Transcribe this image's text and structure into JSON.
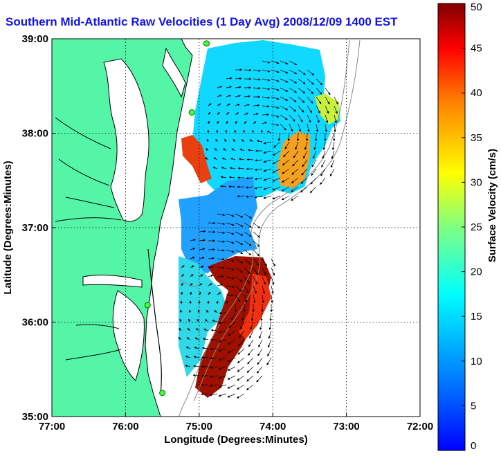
{
  "title": "Southern Mid-Atlantic Raw Velocities (1 Day Avg) 2008/12/09 1400 EST",
  "map": {
    "x_axis": {
      "label": "Longitude (Degrees:Minutes)",
      "ticks": [
        {
          "value": -77,
          "label": "77:00"
        },
        {
          "value": -76,
          "label": "76:00"
        },
        {
          "value": -75,
          "label": "75:00"
        },
        {
          "value": -74,
          "label": "74:00"
        },
        {
          "value": -73,
          "label": "73:00"
        },
        {
          "value": -72,
          "label": "72:00"
        }
      ],
      "range": [
        -77,
        -72
      ]
    },
    "y_axis": {
      "label": "Latitude (Degrees:Minutes)",
      "ticks": [
        {
          "value": 39,
          "label": "39:00"
        },
        {
          "value": 38,
          "label": "38:00"
        },
        {
          "value": 37,
          "label": "37:00"
        },
        {
          "value": 36,
          "label": "36:00"
        },
        {
          "value": 35,
          "label": "35:00"
        }
      ],
      "range": [
        35,
        39
      ]
    },
    "grid": "dotted",
    "land_color": "#55f5a8",
    "stations": [
      {
        "lon": -74.9,
        "lat": 38.95
      },
      {
        "lon": -75.1,
        "lat": 38.22
      },
      {
        "lon": -75.7,
        "lat": 36.18
      },
      {
        "lon": -75.5,
        "lat": 35.25
      }
    ]
  },
  "colorbar": {
    "label": "Surface Velocity (cm/s)",
    "min": 0,
    "max": 50,
    "ticks": [
      "0",
      "5",
      "10",
      "15",
      "20",
      "25",
      "30",
      "35",
      "40",
      "45",
      "50"
    ],
    "colormap": "jet"
  },
  "chart_data": {
    "type": "heatmap",
    "title": "Southern Mid-Atlantic Raw Velocities (1 Day Avg) 2008/12/09 1400 EST",
    "xlabel": "Longitude (Degrees:Minutes)",
    "ylabel": "Latitude (Degrees:Minutes)",
    "xlim": [
      -77,
      -72
    ],
    "ylim": [
      35,
      39
    ],
    "value_label": "Surface Velocity (cm/s)",
    "value_range": [
      0,
      50
    ],
    "regions": [
      {
        "lon": -74.6,
        "lat": 38.3,
        "speed": 10
      },
      {
        "lon": -73.6,
        "lat": 37.85,
        "speed": 30
      },
      {
        "lon": -73.4,
        "lat": 38.3,
        "speed": 22
      },
      {
        "lon": -74.95,
        "lat": 37.75,
        "speed": 42
      },
      {
        "lon": -74.8,
        "lat": 36.9,
        "speed": 8
      },
      {
        "lon": -74.3,
        "lat": 36.3,
        "speed": 45
      },
      {
        "lon": -74.3,
        "lat": 35.6,
        "speed": 40
      },
      {
        "lon": -74.8,
        "lat": 35.8,
        "speed": 14
      }
    ]
  }
}
